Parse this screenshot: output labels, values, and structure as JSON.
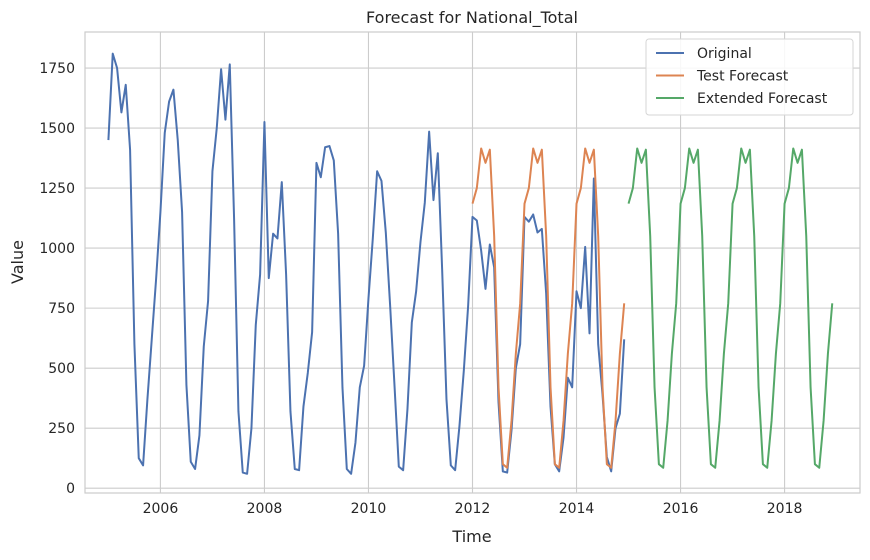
{
  "chart_data": {
    "type": "line",
    "title": "Forecast for National_Total",
    "xlabel": "Time",
    "ylabel": "Value",
    "xlim": [
      2004.55,
      2019.45
    ],
    "ylim": [
      -20,
      1900
    ],
    "x_ticks": [
      2006,
      2008,
      2010,
      2012,
      2014,
      2016,
      2018
    ],
    "y_ticks": [
      0,
      250,
      500,
      750,
      1000,
      1250,
      1500,
      1750
    ],
    "x_tick_labels": [
      "2006",
      "2008",
      "2010",
      "2012",
      "2014",
      "2016",
      "2018"
    ],
    "y_tick_labels": [
      "0",
      "250",
      "500",
      "750",
      "1000",
      "1250",
      "1500",
      "1750"
    ],
    "grid": true,
    "legend_position": "top-right",
    "series": [
      {
        "name": "Original",
        "color": "#4c72b0",
        "x_start": 2005.0,
        "step": 0.08333,
        "values": [
          1450,
          1810,
          1750,
          1565,
          1680,
          1410,
          600,
          125,
          95,
          370,
          620,
          870,
          1150,
          1480,
          1610,
          1660,
          1450,
          1150,
          430,
          110,
          80,
          220,
          590,
          780,
          1320,
          1500,
          1745,
          1535,
          1765,
          1120,
          320,
          65,
          60,
          250,
          680,
          890,
          1525,
          875,
          1060,
          1040,
          1275,
          890,
          320,
          80,
          75,
          340,
          480,
          650,
          1355,
          1295,
          1420,
          1425,
          1365,
          1060,
          420,
          80,
          60,
          190,
          420,
          510,
          790,
          1040,
          1320,
          1280,
          1065,
          760,
          430,
          90,
          75,
          330,
          690,
          820,
          1025,
          1190,
          1485,
          1200,
          1395,
          910,
          370,
          95,
          75,
          260,
          490,
          760,
          1130,
          1115,
          990,
          830,
          1015,
          920,
          360,
          70,
          65,
          240,
          500,
          600,
          1130,
          1110,
          1140,
          1065,
          1080,
          810,
          340,
          100,
          70,
          210,
          460,
          420,
          820,
          750,
          1005,
          645,
          1290,
          600,
          390,
          130,
          70,
          250,
          310,
          620
        ]
      },
      {
        "name": "Test Forecast",
        "color": "#dd8452",
        "x_start": 2012.0,
        "step": 0.08333,
        "values": [
          1185,
          1250,
          1415,
          1355,
          1410,
          1050,
          420,
          100,
          85,
          280,
          560,
          770,
          1185,
          1250,
          1415,
          1355,
          1410,
          1050,
          420,
          100,
          85,
          280,
          560,
          770,
          1185,
          1250,
          1415,
          1355,
          1410,
          1050,
          420,
          100,
          85,
          280,
          560,
          770
        ]
      },
      {
        "name": "Extended Forecast",
        "color": "#55a868",
        "x_start": 2015.0,
        "step": 0.08333,
        "values": [
          1185,
          1250,
          1415,
          1355,
          1410,
          1050,
          420,
          100,
          85,
          280,
          560,
          770,
          1185,
          1250,
          1415,
          1355,
          1410,
          1050,
          420,
          100,
          85,
          280,
          560,
          770,
          1185,
          1250,
          1415,
          1355,
          1410,
          1050,
          420,
          100,
          85,
          280,
          560,
          770,
          1185,
          1250,
          1415,
          1355,
          1410,
          1050,
          420,
          100,
          85,
          280,
          560,
          770
        ]
      }
    ]
  }
}
